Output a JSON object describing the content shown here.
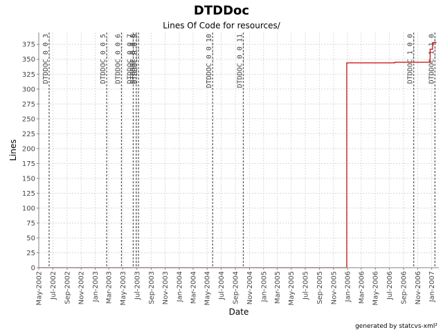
{
  "chart_data": {
    "type": "line",
    "title": "DTDDoc",
    "subtitle": "Lines Of Code for resources/",
    "xlabel": "Date",
    "ylabel": "Lines",
    "xlim": [
      "2002-05-01",
      "2007-02-01"
    ],
    "ylim": [
      0,
      395
    ],
    "grid": true,
    "x_ticks": [
      "May-2002",
      "Jul-2002",
      "Sep-2002",
      "Nov-2002",
      "Jan-2003",
      "Mar-2003",
      "May-2003",
      "Jul-2003",
      "Sep-2003",
      "Nov-2003",
      "Jan-2004",
      "Mar-2004",
      "May-2004",
      "Jul-2004",
      "Sep-2004",
      "Nov-2004",
      "Jan-2005",
      "Mar-2005",
      "May-2005",
      "Jul-2005",
      "Sep-2005",
      "Nov-2005",
      "Jan-2006",
      "Mar-2006",
      "May-2006",
      "Jul-2006",
      "Sep-2006",
      "Nov-2006",
      "Jan-2007"
    ],
    "y_ticks": [
      0,
      25,
      50,
      75,
      100,
      125,
      150,
      175,
      200,
      225,
      250,
      275,
      300,
      325,
      350,
      375
    ],
    "series": [
      {
        "color": "#cc0000",
        "step": true,
        "points": [
          [
            "2002-05-01",
            0
          ],
          [
            "2005-12-28",
            0
          ],
          [
            "2005-12-28",
            344
          ],
          [
            "2006-07-25",
            344
          ],
          [
            "2006-07-25",
            345
          ],
          [
            "2006-12-25",
            345
          ],
          [
            "2006-12-25",
            367
          ],
          [
            "2007-01-05",
            367
          ],
          [
            "2007-01-05",
            378
          ],
          [
            "2007-01-22",
            378
          ]
        ]
      }
    ],
    "releases": [
      {
        "label": "DTDDOC_0_0_3",
        "date": "2002-06-15"
      },
      {
        "label": "DTDDOC_0_0_5",
        "date": "2003-02-20"
      },
      {
        "label": "DTDDOC_0_0_6",
        "date": "2003-04-25"
      },
      {
        "label": "DTDDOC_0_0_7",
        "date": "2003-06-15"
      },
      {
        "label": "DTDDOC_0_0_8",
        "date": "2003-06-28"
      },
      {
        "label": "DTDDOC_0_0_9",
        "date": "2003-07-08"
      },
      {
        "label": "DTDDOC_0_0_10",
        "date": "2004-05-25"
      },
      {
        "label": "DTDDOC_0_0_11",
        "date": "2004-10-05"
      },
      {
        "label": "DTDDOC_1_0_0",
        "date": "2006-10-15"
      },
      {
        "label": "DTDDOC_1_1_0",
        "date": "2007-01-15"
      }
    ]
  },
  "footer": {
    "credit": "generated by statcvs-xml²"
  }
}
